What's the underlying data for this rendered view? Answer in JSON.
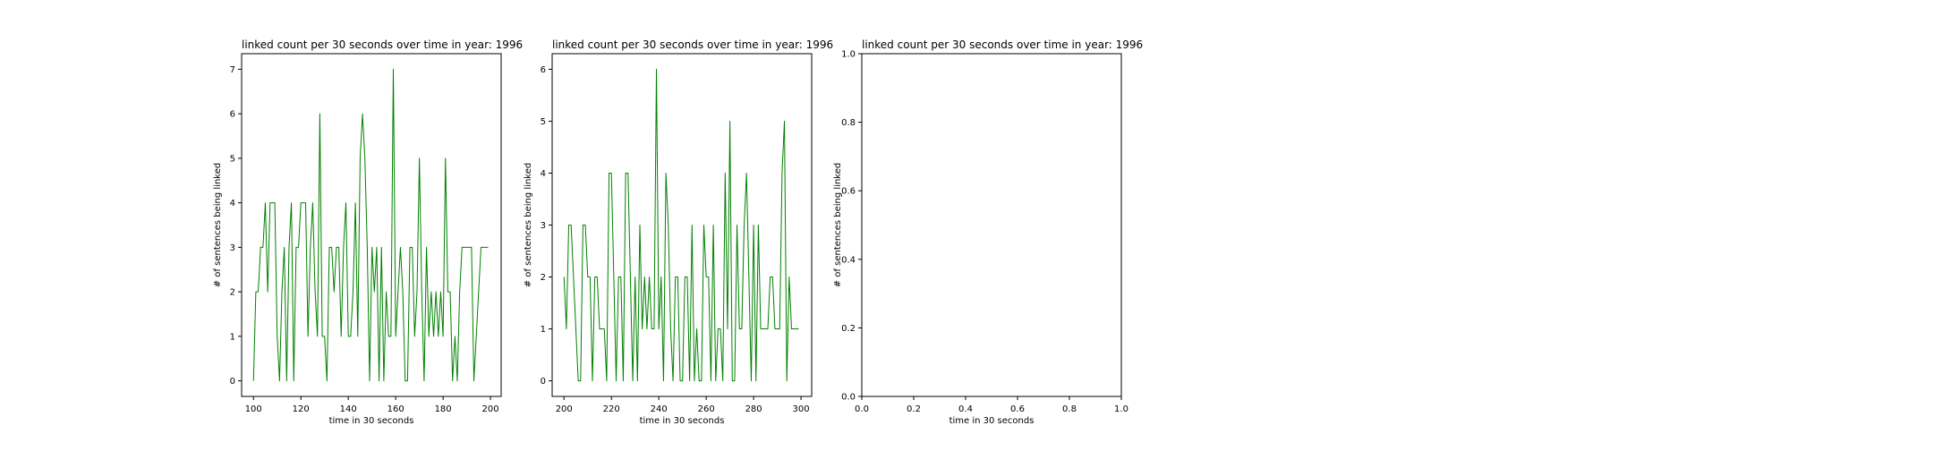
{
  "chart_data": [
    {
      "type": "line",
      "title": "linked count per 30 seconds over time in year: 1996",
      "xlabel": "time in 30 seconds",
      "ylabel": "# of sentences being linked",
      "xlim": [
        95,
        204.5
      ],
      "ylim": [
        -0.35,
        7.35
      ],
      "xticks": [
        100,
        120,
        140,
        160,
        180,
        200
      ],
      "yticks": [
        0,
        1,
        2,
        3,
        4,
        5,
        6,
        7
      ],
      "line_color": "#008000",
      "series": [
        {
          "x": [
            100,
            101,
            102,
            103,
            104,
            105,
            106,
            107,
            108,
            109,
            110,
            111,
            112,
            113,
            114,
            115,
            116,
            117,
            118,
            119,
            120,
            121,
            122,
            123,
            124,
            125,
            126,
            127,
            128,
            129,
            130,
            131,
            132,
            133,
            134,
            135,
            136,
            137,
            138,
            139,
            140,
            141,
            142,
            143,
            144,
            145,
            146,
            147,
            148,
            149,
            150,
            151,
            152,
            153,
            154,
            155,
            156,
            157,
            158,
            159,
            160,
            161,
            162,
            163,
            164,
            165,
            166,
            167,
            168,
            169,
            170,
            171,
            172,
            173,
            174,
            175,
            176,
            177,
            178,
            179,
            180,
            181,
            182,
            183,
            184,
            185,
            186,
            187,
            188,
            189,
            190,
            191,
            192,
            193,
            194,
            195,
            196,
            197,
            198,
            199
          ],
          "y": [
            0,
            2,
            2,
            3,
            3,
            4,
            2,
            4,
            4,
            4,
            1,
            0,
            2,
            3,
            0,
            3,
            4,
            0,
            3,
            3,
            4,
            4,
            4,
            1,
            3,
            4,
            2,
            1,
            6,
            1,
            1,
            0,
            3,
            3,
            2,
            3,
            3,
            1,
            3,
            4,
            1,
            1,
            2,
            4,
            1,
            5,
            6,
            5,
            3,
            0,
            3,
            2,
            3,
            0,
            3,
            0,
            2,
            1,
            1,
            7,
            1,
            2,
            3,
            2,
            0,
            0,
            3,
            3,
            1,
            2,
            5,
            2,
            0,
            3,
            1,
            2,
            1,
            2,
            1,
            2,
            1,
            5,
            2,
            2,
            0,
            1,
            0,
            2,
            3,
            3,
            3,
            3,
            3,
            0,
            1,
            2,
            3,
            3,
            3,
            3
          ]
        }
      ]
    },
    {
      "type": "line",
      "title": "linked count per 30 seconds over time in year: 1996",
      "xlabel": "time in 30 seconds",
      "ylabel": "# of sentences being linked",
      "xlim": [
        195,
        304.5
      ],
      "ylim": [
        -0.3,
        6.3
      ],
      "xticks": [
        200,
        220,
        240,
        260,
        280,
        300
      ],
      "yticks": [
        0,
        1,
        2,
        3,
        4,
        5,
        6
      ],
      "line_color": "#008000",
      "series": [
        {
          "x": [
            200,
            201,
            202,
            203,
            204,
            205,
            206,
            207,
            208,
            209,
            210,
            211,
            212,
            213,
            214,
            215,
            216,
            217,
            218,
            219,
            220,
            221,
            222,
            223,
            224,
            225,
            226,
            227,
            228,
            229,
            230,
            231,
            232,
            233,
            234,
            235,
            236,
            237,
            238,
            239,
            240,
            241,
            242,
            243,
            244,
            245,
            246,
            247,
            248,
            249,
            250,
            251,
            252,
            253,
            254,
            255,
            256,
            257,
            258,
            259,
            260,
            261,
            262,
            263,
            264,
            265,
            266,
            267,
            268,
            269,
            270,
            271,
            272,
            273,
            274,
            275,
            276,
            277,
            278,
            279,
            280,
            281,
            282,
            283,
            284,
            285,
            286,
            287,
            288,
            289,
            290,
            291,
            292,
            293,
            294,
            295,
            296,
            297,
            298,
            299
          ],
          "y": [
            2,
            1,
            3,
            3,
            2,
            1,
            0,
            0,
            3,
            3,
            2,
            2,
            0,
            2,
            2,
            1,
            1,
            1,
            0,
            4,
            4,
            2,
            0,
            2,
            2,
            0,
            4,
            4,
            2,
            0,
            2,
            0,
            3,
            1,
            2,
            1,
            2,
            1,
            1,
            6,
            1,
            2,
            0,
            4,
            3,
            1,
            0,
            2,
            2,
            0,
            0,
            2,
            2,
            0,
            3,
            0,
            1,
            0,
            0,
            3,
            2,
            2,
            0,
            3,
            0,
            1,
            1,
            0,
            4,
            1,
            5,
            0,
            0,
            3,
            1,
            1,
            3,
            4,
            2,
            0,
            3,
            0,
            3,
            1,
            1,
            1,
            1,
            2,
            2,
            1,
            1,
            1,
            4,
            5,
            0,
            2,
            1,
            1,
            1,
            1
          ]
        }
      ]
    },
    {
      "type": "line",
      "title": "linked count per 30 seconds over time in year: 1996",
      "xlabel": "time in 30 seconds",
      "ylabel": "# of sentences being linked",
      "xlim": [
        0,
        1
      ],
      "ylim": [
        0,
        1
      ],
      "xticks": [
        0.0,
        0.2,
        0.4,
        0.6,
        0.8,
        1.0
      ],
      "yticks": [
        0.0,
        0.2,
        0.4,
        0.6,
        0.8,
        1.0
      ],
      "tick_format": "fixed1",
      "line_color": "#008000",
      "series": []
    }
  ]
}
